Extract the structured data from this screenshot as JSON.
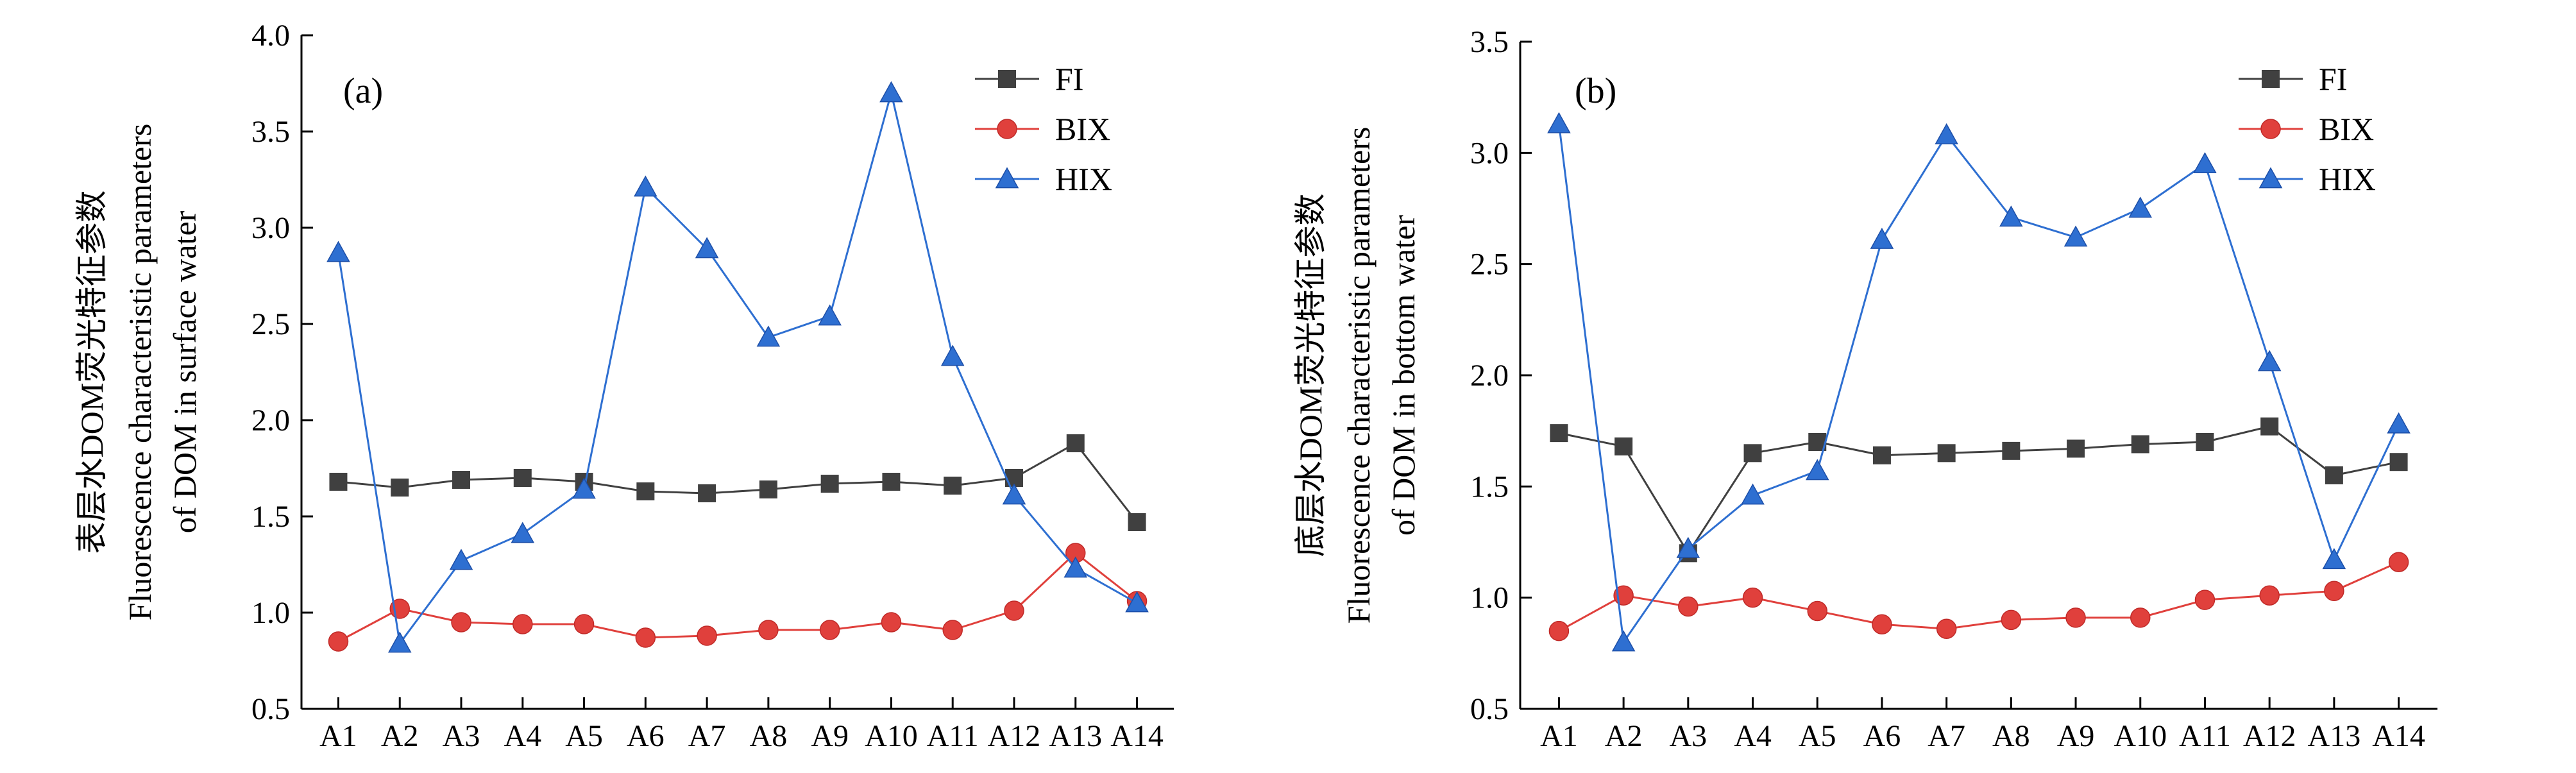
{
  "chart_data": [
    {
      "type": "line",
      "panel_label": "(a)",
      "ylabel": [
        "表层水DOM荧光特征参数",
        "Fluorescence characteristic parameters",
        "of DOM in surface water"
      ],
      "xlabel": "",
      "categories": [
        "A1",
        "A2",
        "A3",
        "A4",
        "A5",
        "A6",
        "A7",
        "A8",
        "A9",
        "A10",
        "A11",
        "A12",
        "A13",
        "A14"
      ],
      "ylim": [
        0.5,
        4.0
      ],
      "yticks": [
        0.5,
        1.0,
        1.5,
        2.0,
        2.5,
        3.0,
        3.5,
        4.0
      ],
      "ytick_labels": [
        "0.5",
        "1.0",
        "1.5",
        "2.0",
        "2.5",
        "3.0",
        "3.5",
        "4.0"
      ],
      "legend_position": "top-right",
      "grid": false,
      "series": [
        {
          "name": "FI",
          "color": "#404040",
          "marker": "square",
          "values": [
            1.68,
            1.65,
            1.69,
            1.7,
            1.68,
            1.63,
            1.62,
            1.64,
            1.67,
            1.68,
            1.66,
            1.7,
            1.88,
            1.47
          ]
        },
        {
          "name": "BIX",
          "color": "#e0403c",
          "marker": "circle",
          "values": [
            0.85,
            1.02,
            0.95,
            0.94,
            0.94,
            0.87,
            0.88,
            0.91,
            0.91,
            0.95,
            0.91,
            1.01,
            1.31,
            1.06
          ]
        },
        {
          "name": "HIX",
          "color": "#2e6fd1",
          "marker": "triangle",
          "values": [
            2.87,
            0.84,
            1.27,
            1.41,
            1.64,
            3.21,
            2.89,
            2.43,
            2.54,
            3.7,
            2.33,
            1.61,
            1.23,
            1.05
          ]
        }
      ]
    },
    {
      "type": "line",
      "panel_label": "(b)",
      "ylabel": [
        "底层水DOM荧光特征参数",
        "Fluorescence characteristic parameters",
        "of DOM in bottom water"
      ],
      "xlabel": "",
      "categories": [
        "A1",
        "A2",
        "A3",
        "A4",
        "A5",
        "A6",
        "A7",
        "A8",
        "A9",
        "A10",
        "A11",
        "A12",
        "A13",
        "A14"
      ],
      "ylim": [
        0.5,
        3.5
      ],
      "yticks": [
        0.5,
        1.0,
        1.5,
        2.0,
        2.5,
        3.0,
        3.5
      ],
      "ytick_labels": [
        "0.5",
        "1.0",
        "1.5",
        "2.0",
        "2.5",
        "3.0",
        "3.5"
      ],
      "legend_position": "top-right",
      "grid": false,
      "series": [
        {
          "name": "FI",
          "color": "#404040",
          "marker": "square",
          "values": [
            1.74,
            1.68,
            1.2,
            1.65,
            1.7,
            1.64,
            1.65,
            1.66,
            1.67,
            1.69,
            1.7,
            1.77,
            1.55,
            1.61
          ]
        },
        {
          "name": "BIX",
          "color": "#e0403c",
          "marker": "circle",
          "values": [
            0.85,
            1.01,
            0.96,
            1.0,
            0.94,
            0.88,
            0.86,
            0.9,
            0.91,
            0.91,
            0.99,
            1.01,
            1.03,
            1.16
          ]
        },
        {
          "name": "HIX",
          "color": "#2e6fd1",
          "marker": "triangle",
          "values": [
            3.13,
            0.8,
            1.22,
            1.46,
            1.57,
            2.61,
            3.08,
            2.71,
            2.62,
            2.75,
            2.95,
            2.06,
            1.17,
            1.78
          ]
        }
      ]
    }
  ]
}
